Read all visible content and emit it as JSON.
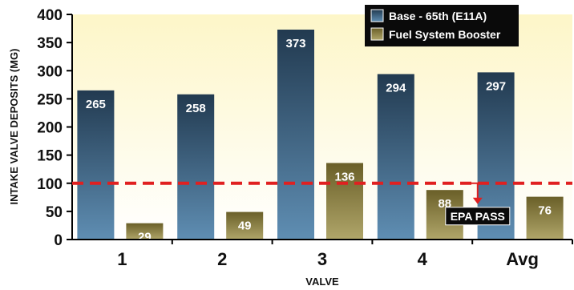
{
  "chart_data": {
    "type": "bar",
    "title": "",
    "xlabel": "VALVE",
    "ylabel": "INTAKE VALVE DEPOSITS (MG)",
    "categories": [
      "1",
      "2",
      "3",
      "4",
      "Avg"
    ],
    "series": [
      {
        "name": "Base - 65th (E11A)",
        "values": [
          265,
          258,
          373,
          294,
          297
        ],
        "color": "#3a5f7f"
      },
      {
        "name": "Fuel System Booster",
        "values": [
          29,
          49,
          136,
          88,
          76
        ],
        "color": "#8a8040"
      }
    ],
    "ylim": [
      0,
      400
    ],
    "yticks": [
      0,
      50,
      100,
      150,
      200,
      250,
      300,
      350,
      400
    ],
    "reference_line": {
      "value": 100,
      "color": "#e02020",
      "style": "dashed"
    },
    "annotation": {
      "text": "EPA PASS",
      "category": "4"
    },
    "legend_position": "top-right",
    "grid": false,
    "background_gradient": [
      "#fdf6c8",
      "#ffffff"
    ]
  }
}
